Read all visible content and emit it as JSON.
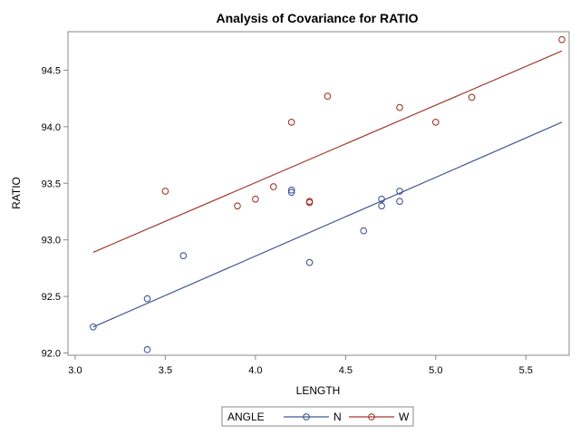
{
  "chart_data": {
    "type": "scatter",
    "title": "Analysis of Covariance for RATIO",
    "xlabel": "LENGTH",
    "ylabel": "RATIO",
    "xlim": [
      2.96,
      5.74
    ],
    "ylim": [
      91.98,
      94.84
    ],
    "xticks": [
      "3.0",
      "3.5",
      "4.0",
      "4.5",
      "5.0",
      "5.5"
    ],
    "yticks": [
      "92.0",
      "92.5",
      "93.0",
      "93.5",
      "94.0",
      "94.5"
    ],
    "grid": false,
    "legend": {
      "title": "ANGLE",
      "placement": "bottom-center"
    },
    "series": [
      {
        "name": "N",
        "color": "#445694",
        "marker": "circle",
        "points": [
          [
            3.1,
            92.23
          ],
          [
            3.4,
            92.48
          ],
          [
            3.4,
            92.03
          ],
          [
            3.6,
            92.86
          ],
          [
            4.2,
            93.44
          ],
          [
            4.2,
            93.42
          ],
          [
            4.3,
            92.8
          ],
          [
            4.6,
            93.08
          ],
          [
            4.7,
            93.36
          ],
          [
            4.7,
            93.3
          ],
          [
            4.8,
            93.43
          ],
          [
            4.8,
            93.34
          ]
        ],
        "fit_line": [
          [
            3.1,
            92.23
          ],
          [
            5.7,
            94.04
          ]
        ]
      },
      {
        "name": "W",
        "color": "#A23A2E",
        "marker": "circle",
        "points": [
          [
            3.5,
            93.43
          ],
          [
            3.9,
            93.3
          ],
          [
            4.0,
            93.36
          ],
          [
            4.1,
            93.47
          ],
          [
            4.2,
            94.04
          ],
          [
            4.3,
            93.34
          ],
          [
            4.3,
            93.33
          ],
          [
            4.4,
            94.27
          ],
          [
            4.8,
            94.17
          ],
          [
            5.0,
            94.04
          ],
          [
            5.2,
            94.26
          ],
          [
            5.7,
            94.77
          ]
        ],
        "fit_line": [
          [
            3.1,
            92.89
          ],
          [
            5.7,
            94.67
          ]
        ]
      }
    ]
  }
}
